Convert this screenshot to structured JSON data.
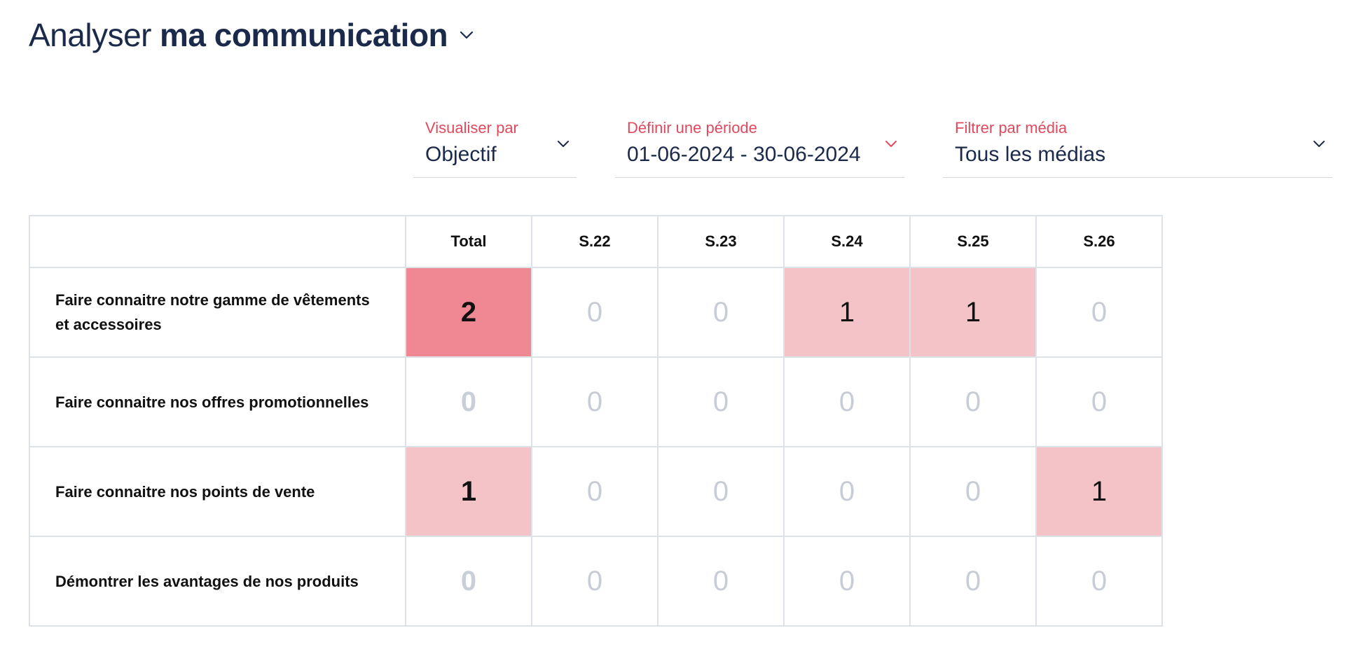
{
  "header": {
    "title_light": "Analyser",
    "title_bold": "ma communication",
    "menu_icon": "chevron-down-icon"
  },
  "filters": {
    "visualiser": {
      "label": "Visualiser par",
      "value": "Objectif",
      "icon": "chevron-down-icon"
    },
    "periode": {
      "label": "Définir une période",
      "value": "01-06-2024 - 30-06-2024",
      "icon": "chevron-down-icon"
    },
    "media": {
      "label": "Filtrer par média",
      "value": "Tous les médias",
      "icon": "chevron-down-icon"
    }
  },
  "colors": {
    "accent": "#e0495e",
    "heat_level_1": "#f4c3c8",
    "heat_level_2": "#ef8893",
    "text_dark": "#1b2a4a",
    "zero_text": "#c7ccd6"
  },
  "table": {
    "columns": [
      "Total",
      "S.22",
      "S.23",
      "S.24",
      "S.25",
      "S.26"
    ],
    "rows": [
      {
        "label": "Faire connaitre notre gamme de vêtements et accessoires",
        "values": [
          "2",
          "0",
          "0",
          "1",
          "1",
          "0"
        ]
      },
      {
        "label": "Faire connaitre nos offres promotionnelles",
        "values": [
          "0",
          "0",
          "0",
          "0",
          "0",
          "0"
        ]
      },
      {
        "label": "Faire connaitre nos points de vente",
        "values": [
          "1",
          "0",
          "0",
          "0",
          "0",
          "1"
        ]
      },
      {
        "label": "Démontrer les avantages de nos produits",
        "values": [
          "0",
          "0",
          "0",
          "0",
          "0",
          "0"
        ]
      }
    ]
  }
}
